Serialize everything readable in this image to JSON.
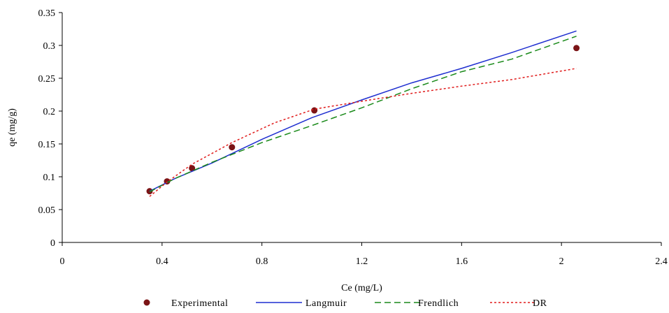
{
  "chart_data": {
    "type": "line",
    "xlabel": "Ce (mg/L)",
    "ylabel": "qe (mg/g)",
    "xlim": [
      0,
      2.4
    ],
    "ylim": [
      0,
      0.35
    ],
    "xticks": [
      0,
      0.4,
      0.8,
      1.2,
      1.6,
      2,
      2.4
    ],
    "xtick_labels": [
      "0",
      "0.4",
      "0.8",
      "1.2",
      "1.6",
      "2",
      "2.4"
    ],
    "yticks": [
      0,
      0.05,
      0.1,
      0.15,
      0.2,
      0.25,
      0.3,
      0.35
    ],
    "ytick_labels": [
      "0",
      "0.05",
      "0.1",
      "0.15",
      "0.2",
      "0.25",
      "0.3",
      "0.35"
    ],
    "grid": false,
    "legend_position": "bottom",
    "series": [
      {
        "name": "Experimental",
        "style": "markers",
        "color": "#7b1416",
        "x": [
          0.35,
          0.42,
          0.52,
          0.68,
          1.01,
          2.06
        ],
        "y": [
          0.078,
          0.093,
          0.113,
          0.145,
          0.201,
          0.296
        ]
      },
      {
        "name": "Langmuir",
        "style": "solid",
        "color": "#1f2fd0",
        "x": [
          0.35,
          0.45,
          0.6,
          0.8,
          1.0,
          1.2,
          1.4,
          1.6,
          1.8,
          2.06
        ],
        "y": [
          0.078,
          0.097,
          0.121,
          0.157,
          0.19,
          0.217,
          0.243,
          0.265,
          0.289,
          0.322
        ]
      },
      {
        "name": "Frendlich",
        "style": "dashed",
        "color": "#1a8a1a",
        "x": [
          0.35,
          0.45,
          0.6,
          0.8,
          1.0,
          1.2,
          1.4,
          1.6,
          1.8,
          2.06
        ],
        "y": [
          0.077,
          0.097,
          0.122,
          0.152,
          0.178,
          0.205,
          0.234,
          0.26,
          0.279,
          0.314
        ]
      },
      {
        "name": "DR",
        "style": "dotted",
        "color": "#e01c1c",
        "x": [
          0.35,
          0.42,
          0.52,
          0.68,
          0.85,
          1.01,
          1.2,
          1.4,
          1.6,
          1.8,
          2.06
        ],
        "y": [
          0.07,
          0.092,
          0.119,
          0.152,
          0.182,
          0.203,
          0.215,
          0.227,
          0.238,
          0.248,
          0.265
        ]
      }
    ]
  }
}
